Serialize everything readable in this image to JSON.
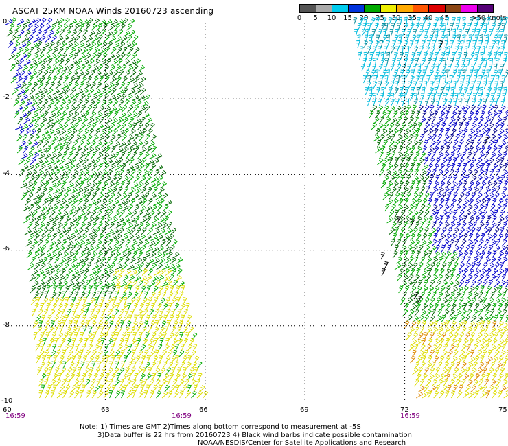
{
  "title": "ASCAT 25KM NOAA Winds 20160723 ascending",
  "legend": {
    "unit_label": ">50 knots",
    "swatches": [
      {
        "label": "0",
        "color": "#555555"
      },
      {
        "label": "5",
        "color": "#aaaaaa"
      },
      {
        "label": "10",
        "color": "#00ccee"
      },
      {
        "label": "15",
        "color": "#0033dd"
      },
      {
        "label": "20",
        "color": "#00aa00"
      },
      {
        "label": "25",
        "color": "#eeee00"
      },
      {
        "label": "30",
        "color": "#ffaa00"
      },
      {
        "label": "35",
        "color": "#ff5500"
      },
      {
        "label": "40",
        "color": "#dd0000"
      },
      {
        "label": "45",
        "color": "#8b4513"
      },
      {
        "label": "",
        "color": "#ee00ee"
      },
      {
        "label": "",
        "color": "#550077"
      }
    ]
  },
  "axes": {
    "lat_labels": [
      "0",
      "-2",
      "-4",
      "-6",
      "-8",
      "-10"
    ],
    "lon_labels": [
      "60",
      "63",
      "66",
      "69",
      "72",
      "75"
    ],
    "lon_range": [
      60,
      75
    ],
    "lat_range": [
      0,
      -10
    ]
  },
  "times": [
    "16:59",
    "16:59",
    "16:59"
  ],
  "notes": {
    "line1": "Note: 1) Times are GMT 2)Times along bottom correspond to measurement at -5S",
    "line2": "3)Data buffer is 22 hrs from 20160723 4) Black wind barbs indicate possible contamination",
    "line3": "NOAA/NESDIS/Center for Satellite Applications and Research"
  },
  "colors": {
    "grid": "#000000",
    "blue_barb": "#0000cc",
    "green_barb": "#00aa00",
    "dark_green_barb": "#006600",
    "yellow_barb": "#dddd00",
    "cyan_barb": "#00bbdd",
    "orange_barb": "#dd8800",
    "contaminated_barb": "#000000"
  }
}
